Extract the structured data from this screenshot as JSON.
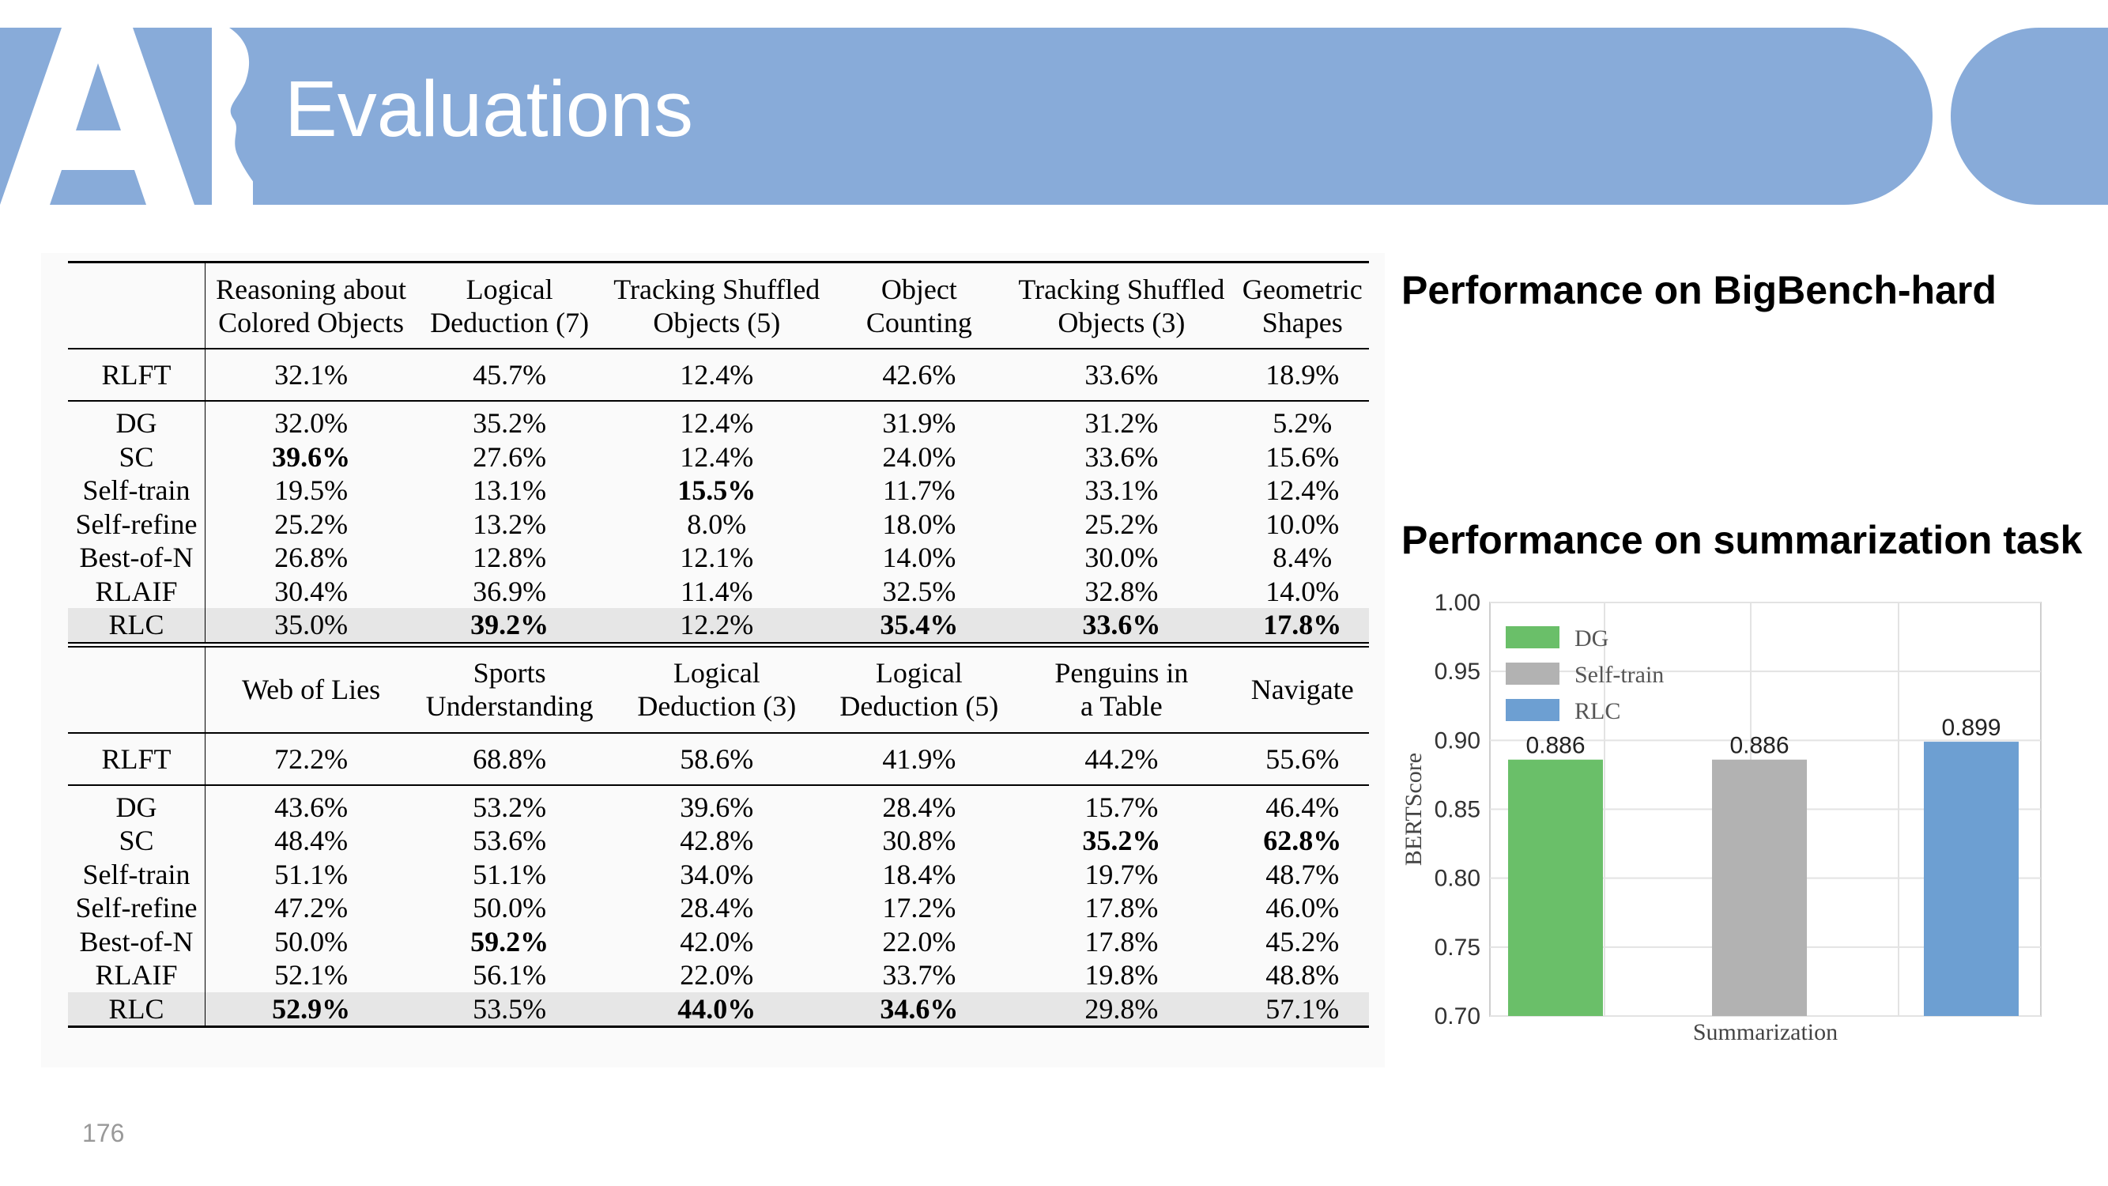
{
  "slide": {
    "title": "Evaluations",
    "page_number": "176",
    "heading_bigbench": "Performance on BigBench-hard",
    "heading_summ": "Performance on summarization task",
    "logo_text": "AI",
    "banner_color": "#88abd9"
  },
  "table_top": {
    "headers": [
      [
        "Reasoning about",
        "Colored Objects"
      ],
      [
        "Logical",
        "Deduction (7)"
      ],
      [
        "Tracking Shuffled",
        "Objects (5)"
      ],
      [
        "Object",
        "Counting"
      ],
      [
        "Tracking Shuffled",
        "Objects (3)"
      ],
      [
        "Geometric",
        "Shapes"
      ]
    ],
    "rows": [
      {
        "label": "RLFT",
        "cells": [
          "32.1%",
          "45.7%",
          "12.4%",
          "42.6%",
          "33.6%",
          "18.9%"
        ]
      },
      {
        "label": "DG",
        "cells": [
          "32.0%",
          "35.2%",
          "12.4%",
          "31.9%",
          "31.2%",
          "5.2%"
        ]
      },
      {
        "label": "SC",
        "cells": [
          "39.6%",
          "27.6%",
          "12.4%",
          "24.0%",
          "33.6%",
          "15.6%"
        ]
      },
      {
        "label": "Self-train",
        "cells": [
          "19.5%",
          "13.1%",
          "15.5%",
          "11.7%",
          "33.1%",
          "12.4%"
        ]
      },
      {
        "label": "Self-refine",
        "cells": [
          "25.2%",
          "13.2%",
          "8.0%",
          "18.0%",
          "25.2%",
          "10.0%"
        ]
      },
      {
        "label": "Best-of-N",
        "cells": [
          "26.8%",
          "12.8%",
          "12.1%",
          "14.0%",
          "30.0%",
          "8.4%"
        ]
      },
      {
        "label": "RLAIF",
        "cells": [
          "30.4%",
          "36.9%",
          "11.4%",
          "32.5%",
          "32.8%",
          "14.0%"
        ]
      },
      {
        "label": "RLC",
        "cells": [
          "35.0%",
          "39.2%",
          "12.2%",
          "35.4%",
          "33.6%",
          "17.8%"
        ]
      }
    ]
  },
  "table_bottom": {
    "headers": [
      [
        "Web of Lies"
      ],
      [
        "Sports",
        "Understanding"
      ],
      [
        "Logical",
        "Deduction (3)"
      ],
      [
        "Logical",
        "Deduction (5)"
      ],
      [
        "Penguins in",
        "a Table"
      ],
      [
        "Navigate"
      ]
    ],
    "rows": [
      {
        "label": "RLFT",
        "cells": [
          "72.2%",
          "68.8%",
          "58.6%",
          "41.9%",
          "44.2%",
          "55.6%"
        ]
      },
      {
        "label": "DG",
        "cells": [
          "43.6%",
          "53.2%",
          "39.6%",
          "28.4%",
          "15.7%",
          "46.4%"
        ]
      },
      {
        "label": "SC",
        "cells": [
          "48.4%",
          "53.6%",
          "42.8%",
          "30.8%",
          "35.2%",
          "62.8%"
        ]
      },
      {
        "label": "Self-train",
        "cells": [
          "51.1%",
          "51.1%",
          "34.0%",
          "18.4%",
          "19.7%",
          "48.7%"
        ]
      },
      {
        "label": "Self-refine",
        "cells": [
          "47.2%",
          "50.0%",
          "28.4%",
          "17.2%",
          "17.8%",
          "46.0%"
        ]
      },
      {
        "label": "Best-of-N",
        "cells": [
          "50.0%",
          "59.2%",
          "42.0%",
          "22.0%",
          "17.8%",
          "45.2%"
        ]
      },
      {
        "label": "RLAIF",
        "cells": [
          "52.1%",
          "56.1%",
          "22.0%",
          "33.7%",
          "19.8%",
          "48.8%"
        ]
      },
      {
        "label": "RLC",
        "cells": [
          "52.9%",
          "53.5%",
          "44.0%",
          "34.6%",
          "29.8%",
          "57.1%"
        ]
      }
    ]
  },
  "chart_data": {
    "type": "bar",
    "categories": [
      "Summarization"
    ],
    "series": [
      {
        "name": "DG",
        "values": [
          0.886
        ],
        "color": "#6abf69",
        "label": "0.886"
      },
      {
        "name": "Self-train",
        "values": [
          0.886
        ],
        "color": "#b2b2b2",
        "label": "0.886"
      },
      {
        "name": "RLC",
        "values": [
          0.899
        ],
        "color": "#6d9fd2",
        "label": "0.899"
      }
    ],
    "title": "",
    "xlabel": "Summarization",
    "ylabel": "BERTScore",
    "ylim": [
      0.7,
      1.0
    ],
    "yticks": [
      "0.70",
      "0.75",
      "0.80",
      "0.85",
      "0.90",
      "0.95",
      "1.00"
    ],
    "grid": true,
    "legend": "top-left"
  }
}
